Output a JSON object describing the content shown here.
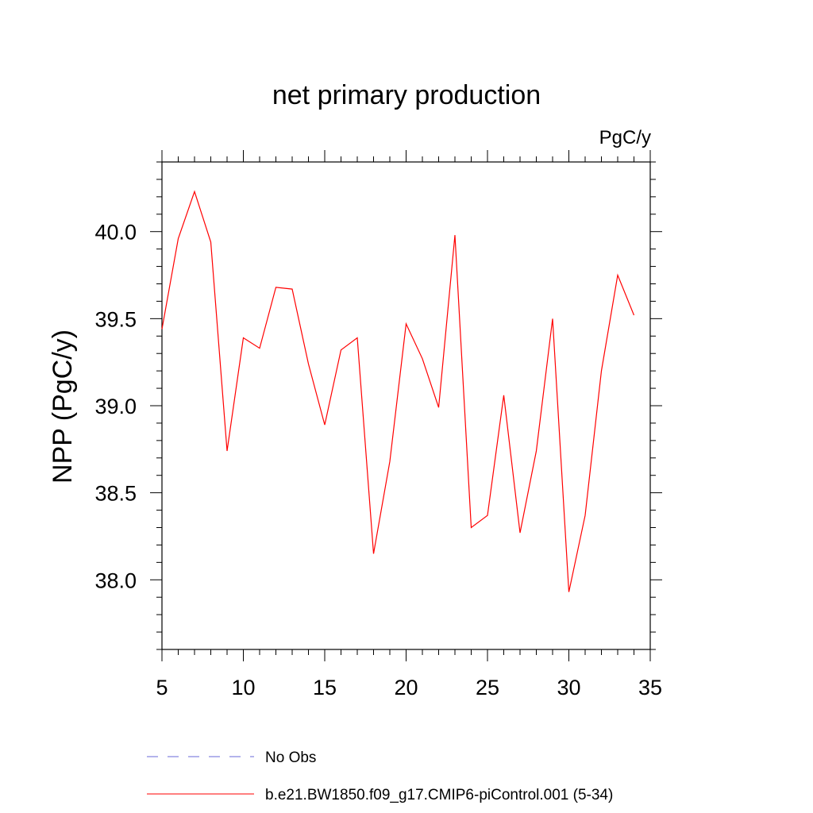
{
  "chart_data": {
    "type": "line",
    "title": "net primary production",
    "units_label": "PgC/y",
    "xlabel": "",
    "ylabel": "NPP  (PgC/y)",
    "xlim": [
      5,
      35
    ],
    "ylim": [
      37.6,
      40.4
    ],
    "x_ticks": [
      5,
      10,
      15,
      20,
      25,
      30,
      35
    ],
    "y_ticks": [
      38.0,
      38.5,
      39.0,
      39.5,
      40.0
    ],
    "x_tick_labels": [
      "5",
      "10",
      "15",
      "20",
      "25",
      "30",
      "35"
    ],
    "y_tick_labels": [
      "38.0",
      "38.5",
      "39.0",
      "39.5",
      "40.0"
    ],
    "grid": false,
    "legend_placement": "bottom",
    "series": [
      {
        "name": "b.e21.BW1850.f09_g17.CMIP6-piControl.001 (5-34)",
        "color": "#ff0000",
        "style": "solid",
        "x": [
          5,
          6,
          7,
          8,
          9,
          10,
          11,
          12,
          13,
          14,
          15,
          16,
          17,
          18,
          19,
          20,
          21,
          22,
          23,
          24,
          25,
          26,
          27,
          28,
          29,
          30,
          31,
          32,
          33,
          34
        ],
        "values": [
          39.44,
          39.96,
          40.23,
          39.94,
          38.74,
          39.39,
          39.33,
          39.68,
          39.67,
          39.24,
          38.89,
          39.32,
          39.39,
          38.15,
          38.68,
          39.47,
          39.27,
          38.99,
          39.98,
          38.3,
          38.37,
          39.06,
          38.27,
          38.74,
          39.5,
          37.93,
          38.37,
          39.2,
          39.75,
          39.52
        ]
      }
    ],
    "legend": [
      {
        "label": "No Obs",
        "color": "#6a6ad8",
        "style": "dashed"
      },
      {
        "label": "b.e21.BW1850.f09_g17.CMIP6-piControl.001 (5-34)",
        "color": "#ff0000",
        "style": "solid"
      }
    ]
  }
}
